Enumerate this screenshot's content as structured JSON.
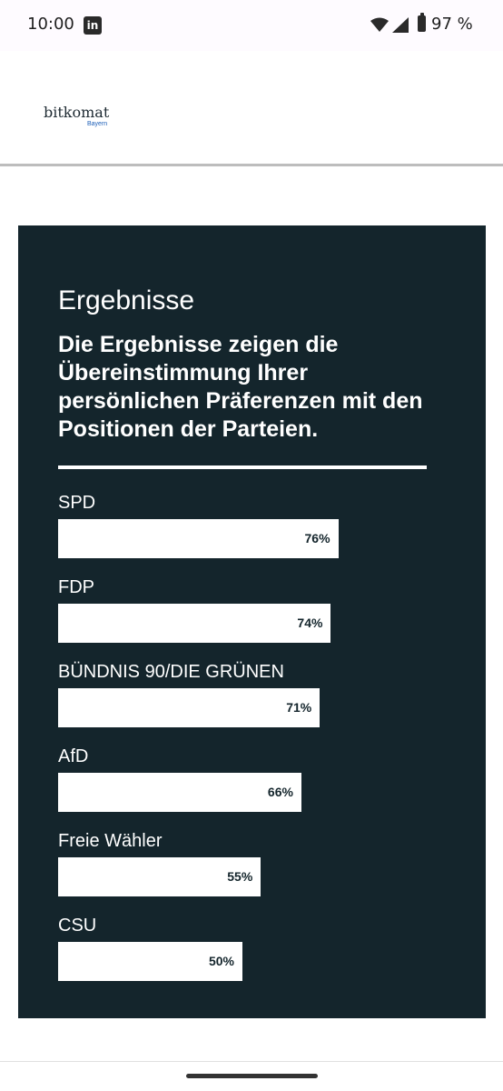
{
  "status_bar": {
    "time": "10:00",
    "notification_app": "in",
    "battery": "97 %"
  },
  "header": {
    "logo_main": "bitkomat",
    "logo_sub": "Bayern"
  },
  "results": {
    "title": "Ergebnisse",
    "subtitle": "Die Ergebnisse zeigen die Übereinstimmung Ihrer persönlichen Präferenzen mit den Positionen der Parteien.",
    "parties": [
      {
        "name": "SPD",
        "value": 76,
        "label": "76%"
      },
      {
        "name": "FDP",
        "value": 74,
        "label": "74%"
      },
      {
        "name": "BÜNDNIS 90/DIE GRÜNEN",
        "value": 71,
        "label": "71%"
      },
      {
        "name": "AfD",
        "value": 66,
        "label": "66%"
      },
      {
        "name": "Freie Wähler",
        "value": 55,
        "label": "55%"
      },
      {
        "name": "CSU",
        "value": 50,
        "label": "50%"
      }
    ]
  },
  "colors": {
    "panel_bg": "#14252c",
    "bar": "#ffffff",
    "logo_sub": "#1d5fb8"
  }
}
